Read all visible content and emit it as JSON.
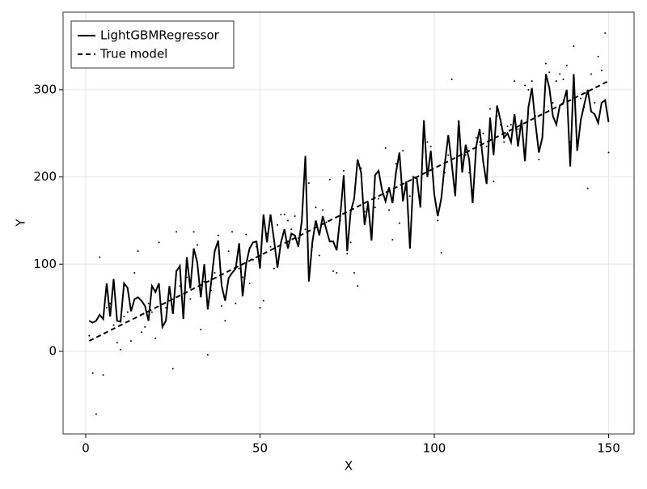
{
  "chart_data": {
    "type": "line",
    "xlabel": "X",
    "ylabel": "Y",
    "xlim": [
      -6.5,
      157.3
    ],
    "ylim": [
      -94.7,
      389
    ],
    "xticks": [
      0,
      50,
      100,
      150
    ],
    "yticks": [
      0,
      100,
      200,
      300
    ],
    "grid": true,
    "legend": "upper left",
    "x": [
      1,
      2,
      3,
      4,
      5,
      6,
      7,
      8,
      9,
      10,
      11,
      12,
      13,
      14,
      15,
      16,
      17,
      18,
      19,
      20,
      21,
      22,
      23,
      24,
      25,
      26,
      27,
      28,
      29,
      30,
      31,
      32,
      33,
      34,
      35,
      36,
      37,
      38,
      39,
      40,
      41,
      42,
      43,
      44,
      45,
      46,
      47,
      48,
      49,
      50,
      51,
      52,
      53,
      54,
      55,
      56,
      57,
      58,
      59,
      60,
      61,
      62,
      63,
      64,
      65,
      66,
      67,
      68,
      69,
      70,
      71,
      72,
      73,
      74,
      75,
      76,
      77,
      78,
      79,
      80,
      81,
      82,
      83,
      84,
      85,
      86,
      87,
      88,
      89,
      90,
      91,
      92,
      93,
      94,
      95,
      96,
      97,
      98,
      99,
      100,
      101,
      102,
      103,
      104,
      105,
      106,
      107,
      108,
      109,
      110,
      111,
      112,
      113,
      114,
      115,
      116,
      117,
      118,
      119,
      120,
      121,
      122,
      123,
      124,
      125,
      126,
      127,
      128,
      129,
      130,
      131,
      132,
      133,
      134,
      135,
      136,
      137,
      138,
      139,
      140,
      141,
      142,
      143,
      144,
      145,
      146,
      147,
      148,
      149,
      150
    ],
    "series": [
      {
        "style": "points",
        "color": "#000000",
        "values": [
          18,
          -25,
          -72,
          108,
          -27,
          50,
          55,
          30,
          10,
          2,
          40,
          45,
          12,
          90,
          115,
          22,
          28,
          55,
          45,
          15,
          125,
          30,
          50,
          58,
          -20,
          137,
          75,
          40,
          85,
          60,
          137,
          122,
          25,
          80,
          -4,
          70,
          90,
          133,
          52,
          35,
          115,
          137,
          55,
          95,
          85,
          134,
          78,
          105,
          120,
          50,
          58,
          135,
          120,
          95,
          145,
          157,
          157,
          150,
          140,
          155,
          130,
          148,
          140,
          193,
          120,
          165,
          110,
          162,
          148,
          197,
          92,
          90,
          150,
          207,
          112,
          125,
          90,
          75,
          210,
          160,
          170,
          135,
          165,
          175,
          180,
          233,
          162,
          128,
          215,
          147,
          230,
          185,
          178,
          200,
          195,
          172,
          263,
          240,
          235,
          180,
          150,
          113,
          205,
          225,
          312,
          190,
          250,
          215,
          225,
          205,
          185,
          245,
          240,
          250,
          235,
          278,
          195,
          270,
          260,
          240,
          258,
          260,
          310,
          255,
          265,
          305,
          300,
          310,
          270,
          220,
          250,
          330,
          320,
          285,
          310,
          318,
          312,
          328,
          240,
          350,
          238,
          290,
          280,
          187,
          318,
          285,
          338,
          322,
          365,
          228
        ]
      },
      {
        "name": "LightGBMRegressor",
        "style": "solid",
        "color": "#000000",
        "values": [
          35,
          33,
          35,
          42,
          37,
          78,
          40,
          83,
          35,
          34,
          78,
          73,
          46,
          60,
          62,
          58,
          52,
          35,
          75,
          68,
          78,
          28,
          35,
          75,
          43,
          92,
          98,
          37,
          108,
          72,
          118,
          102,
          62,
          100,
          48,
          80,
          115,
          127,
          75,
          58,
          84,
          90,
          95,
          124,
          63,
          100,
          118,
          125,
          126,
          95,
          157,
          125,
          157,
          128,
          96,
          125,
          140,
          118,
          135,
          133,
          120,
          150,
          224,
          80,
          125,
          150,
          133,
          155,
          140,
          126,
          126,
          116,
          155,
          202,
          115,
          160,
          175,
          220,
          205,
          145,
          170,
          127,
          202,
          207,
          185,
          172,
          188,
          170,
          205,
          228,
          172,
          195,
          118,
          200,
          198,
          165,
          265,
          200,
          230,
          180,
          155,
          175,
          215,
          248,
          215,
          178,
          265,
          205,
          237,
          220,
          170,
          235,
          255,
          218,
          192,
          268,
          225,
          282,
          265,
          245,
          250,
          240,
          272,
          235,
          265,
          218,
          280,
          302,
          262,
          228,
          245,
          318,
          302,
          270,
          260,
          282,
          285,
          300,
          212,
          318,
          230,
          265,
          283,
          300,
          275,
          272,
          262,
          285,
          288,
          263
        ]
      },
      {
        "name": "True model",
        "style": "dashed",
        "color": "#000000",
        "values": [
          12,
          14,
          16,
          18,
          20,
          22,
          24,
          26,
          28,
          30,
          32,
          34,
          36,
          38,
          40,
          42,
          44,
          46,
          48,
          50,
          52,
          54,
          56,
          58,
          60,
          62,
          64,
          66,
          68,
          70,
          72,
          74,
          76,
          78,
          80,
          82,
          84,
          86,
          88,
          90,
          92,
          94,
          96,
          98,
          100,
          102,
          104,
          106,
          108,
          110,
          112,
          114,
          116,
          118,
          120,
          122,
          124,
          126,
          128,
          130,
          132,
          134,
          136,
          138,
          140,
          142,
          144,
          146,
          148,
          150,
          152,
          154,
          156,
          158,
          160,
          162,
          164,
          166,
          168,
          170,
          172,
          174,
          176,
          178,
          180,
          182,
          184,
          186,
          188,
          190,
          192,
          194,
          196,
          198,
          200,
          202,
          204,
          206,
          208,
          210,
          212,
          214,
          216,
          218,
          220,
          222,
          224,
          226,
          228,
          230,
          232,
          234,
          236,
          238,
          240,
          242,
          244,
          246,
          248,
          250,
          252,
          254,
          256,
          258,
          260,
          262,
          264,
          266,
          268,
          270,
          272,
          274,
          276,
          278,
          280,
          282,
          284,
          286,
          288,
          290,
          292,
          294,
          296,
          298,
          300,
          302,
          304,
          306,
          308,
          310
        ]
      }
    ]
  }
}
